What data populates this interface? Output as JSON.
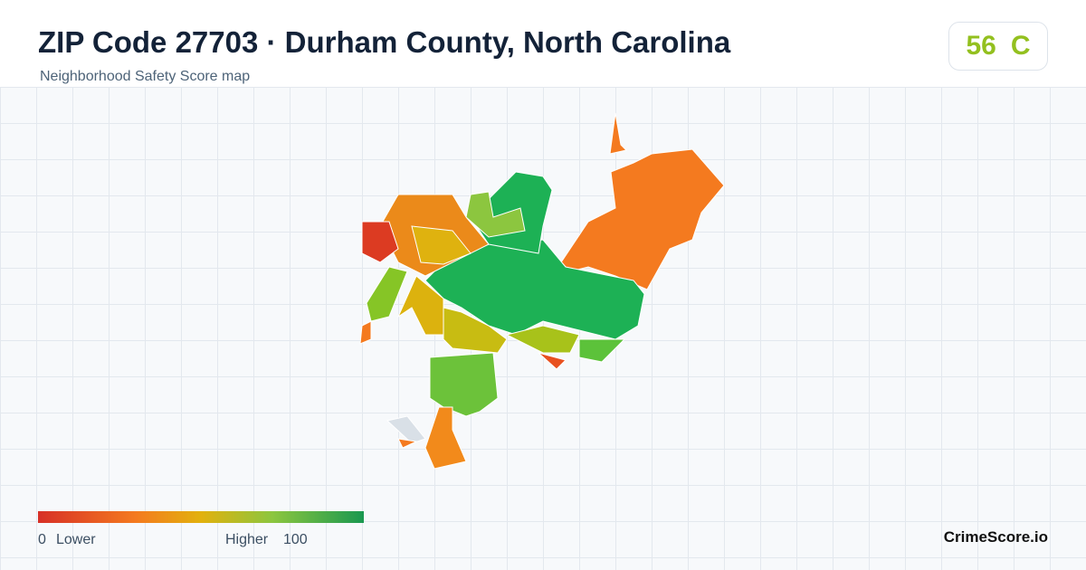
{
  "header": {
    "title": "ZIP Code 27703 · Durham County, North Carolina",
    "subtitle": "Neighborhood Safety Score map"
  },
  "badge": {
    "score": 56,
    "grade": "C"
  },
  "legend": {
    "min": 0,
    "min_label": "Lower",
    "max_label": "Higher",
    "max": 100
  },
  "brand": "CrimeScore.io"
}
